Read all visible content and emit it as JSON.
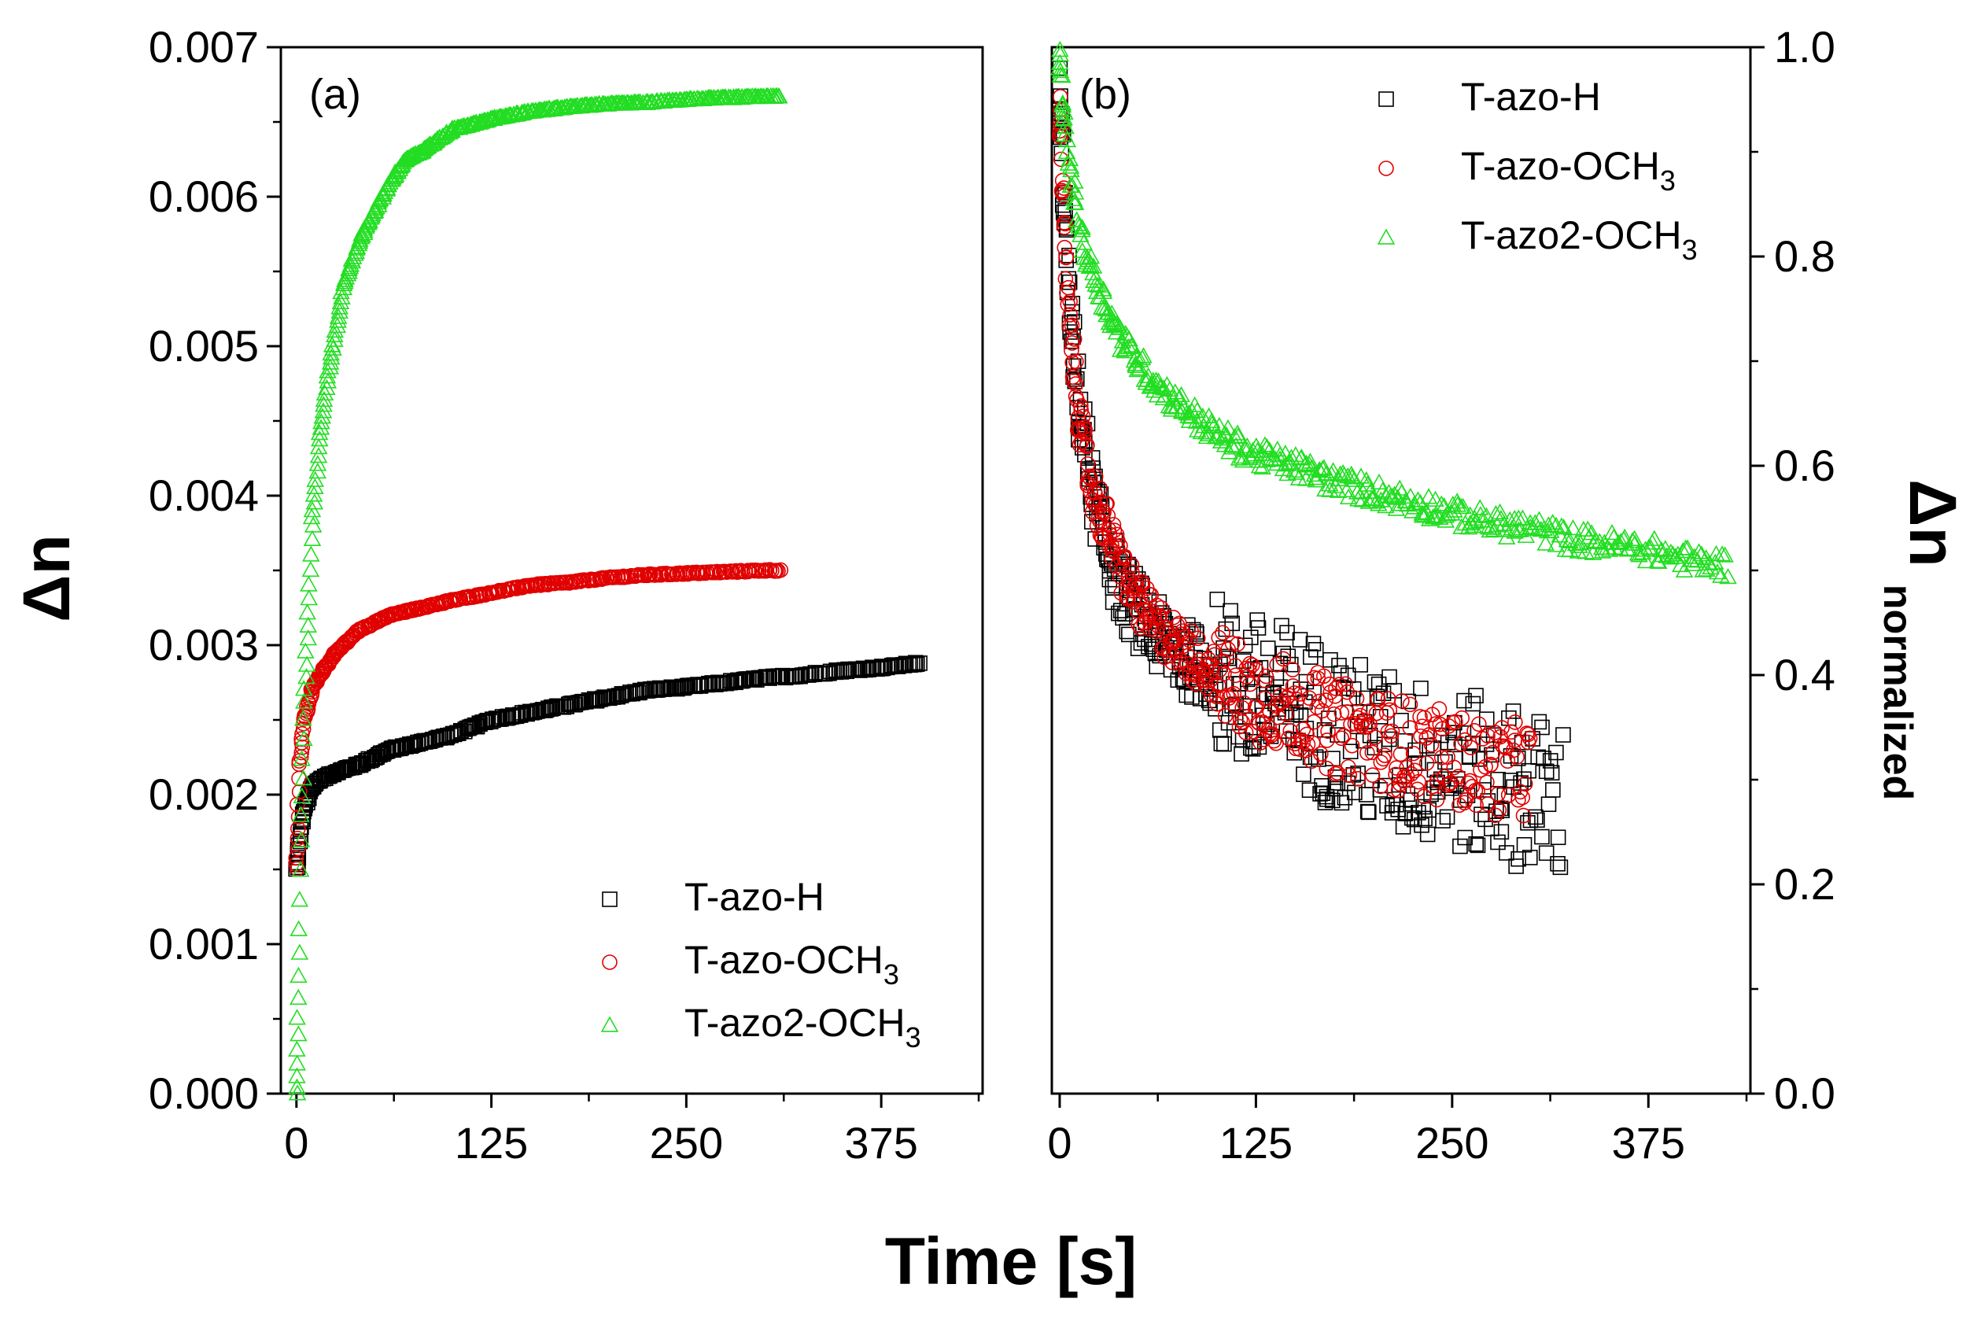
{
  "figure_title": "",
  "xlabel_shared": "Time [s]",
  "colors": {
    "T-azo-H": "#000000",
    "T-azo-OCH3": "#e00000",
    "T-azo2-OCH3": "#22dd22"
  },
  "chart_data": [
    {
      "type": "scatter",
      "panel_label": "(a)",
      "title": "",
      "xlabel": "Time [s]",
      "ylabel": "Δn",
      "xlim": [
        -10,
        440
      ],
      "ylim": [
        0,
        0.007
      ],
      "xticks": [
        0,
        125,
        250,
        375
      ],
      "xtick_labels": [
        "0",
        "125",
        "250",
        "375"
      ],
      "yticks": [
        0,
        0.001,
        0.002,
        0.003,
        0.004,
        0.005,
        0.006,
        0.007
      ],
      "ytick_labels": [
        "0.000",
        "0.001",
        "0.002",
        "0.003",
        "0.004",
        "0.005",
        "0.006",
        "0.007"
      ],
      "legend_position": "bottom-right",
      "series": [
        {
          "name": "T-azo-H",
          "legend_label": "T-azo-H",
          "legend_sub": "",
          "marker": "square",
          "x": [
            0,
            2,
            5,
            10,
            15,
            25,
            40,
            60,
            80,
            100,
            125,
            150,
            175,
            200,
            225,
            250,
            275,
            300,
            325,
            350,
            375,
            400
          ],
          "y": [
            0.0015,
            0.0017,
            0.0019,
            0.00205,
            0.0021,
            0.00215,
            0.0022,
            0.0023,
            0.00235,
            0.0024,
            0.0025,
            0.00255,
            0.0026,
            0.00265,
            0.0027,
            0.00272,
            0.00275,
            0.00278,
            0.0028,
            0.00283,
            0.00285,
            0.00288
          ]
        },
        {
          "name": "T-azo-OCH3",
          "legend_label": "T-azo-OCH",
          "legend_sub": "3",
          "marker": "circle",
          "x": [
            0,
            2,
            5,
            10,
            15,
            25,
            40,
            60,
            80,
            100,
            125,
            150,
            175,
            200,
            225,
            250,
            275,
            300,
            310
          ],
          "y": [
            0.0015,
            0.0022,
            0.0025,
            0.0027,
            0.0028,
            0.00295,
            0.0031,
            0.0032,
            0.00325,
            0.0033,
            0.00335,
            0.0034,
            0.00342,
            0.00345,
            0.00347,
            0.00348,
            0.00349,
            0.0035,
            0.0035
          ]
        },
        {
          "name": "T-azo2-OCH3",
          "legend_label": "T-azo2-OCH",
          "legend_sub": "3",
          "marker": "triangle",
          "x": [
            0,
            1,
            2,
            3,
            5,
            8,
            10,
            15,
            20,
            25,
            30,
            40,
            50,
            60,
            70,
            80,
            100,
            125,
            150,
            175,
            200,
            225,
            250,
            275,
            300,
            310
          ],
          "y": [
            0.0,
            0.0005,
            0.0011,
            0.0018,
            0.0026,
            0.0033,
            0.0038,
            0.0044,
            0.0048,
            0.0051,
            0.0054,
            0.0057,
            0.0059,
            0.0061,
            0.00625,
            0.0063,
            0.00645,
            0.00652,
            0.00657,
            0.0066,
            0.00662,
            0.00663,
            0.00665,
            0.00666,
            0.00667,
            0.00667
          ]
        }
      ]
    },
    {
      "type": "scatter",
      "panel_label": "(b)",
      "title": "",
      "xlabel": "Time [s]",
      "ylabel": "Δn",
      "ylabel_sub": "normalized",
      "xlim": [
        -5,
        440
      ],
      "ylim": [
        0,
        1.0
      ],
      "xticks": [
        0,
        125,
        250,
        375
      ],
      "xtick_labels": [
        "0",
        "125",
        "250",
        "375"
      ],
      "yticks": [
        0,
        0.2,
        0.4,
        0.6,
        0.8,
        1.0
      ],
      "ytick_labels": [
        "0.0",
        "0.2",
        "0.4",
        "0.6",
        "0.8",
        "1.0"
      ],
      "legend_position": "top-right",
      "series": [
        {
          "name": "T-azo-H",
          "legend_label": "T-azo-H",
          "legend_sub": "",
          "marker": "square",
          "x": [
            0,
            5,
            10,
            20,
            30,
            40,
            50,
            60,
            75,
            100,
            125,
            150,
            175,
            200,
            225,
            250,
            275,
            300,
            310,
            320
          ],
          "y": [
            0.95,
            0.78,
            0.68,
            0.58,
            0.52,
            0.48,
            0.46,
            0.44,
            0.42,
            0.4,
            0.38,
            0.37,
            0.35,
            0.33,
            0.32,
            0.31,
            0.3,
            0.29,
            0.28,
            0.28
          ]
        },
        {
          "name": "T-azo-OCH3",
          "legend_label": "T-azo-OCH",
          "legend_sub": "3",
          "marker": "circle",
          "x": [
            0,
            3,
            6,
            10,
            15,
            20,
            30,
            40,
            50,
            60,
            75,
            100,
            125,
            150,
            175,
            200,
            225,
            250,
            275,
            300
          ],
          "y": [
            0.95,
            0.82,
            0.74,
            0.68,
            0.62,
            0.58,
            0.54,
            0.5,
            0.47,
            0.45,
            0.43,
            0.4,
            0.38,
            0.37,
            0.35,
            0.34,
            0.33,
            0.32,
            0.31,
            0.31
          ]
        },
        {
          "name": "T-azo2-OCH3",
          "legend_label": "T-azo2-OCH",
          "legend_sub": "3",
          "marker": "triangle",
          "x": [
            0,
            3,
            6,
            10,
            15,
            20,
            30,
            40,
            50,
            60,
            75,
            100,
            125,
            150,
            175,
            200,
            225,
            250,
            275,
            300,
            325,
            350,
            375,
            400,
            425
          ],
          "y": [
            0.99,
            0.93,
            0.89,
            0.85,
            0.81,
            0.79,
            0.75,
            0.72,
            0.7,
            0.68,
            0.66,
            0.63,
            0.61,
            0.6,
            0.585,
            0.575,
            0.565,
            0.555,
            0.545,
            0.54,
            0.53,
            0.525,
            0.52,
            0.51,
            0.505
          ]
        }
      ]
    }
  ]
}
